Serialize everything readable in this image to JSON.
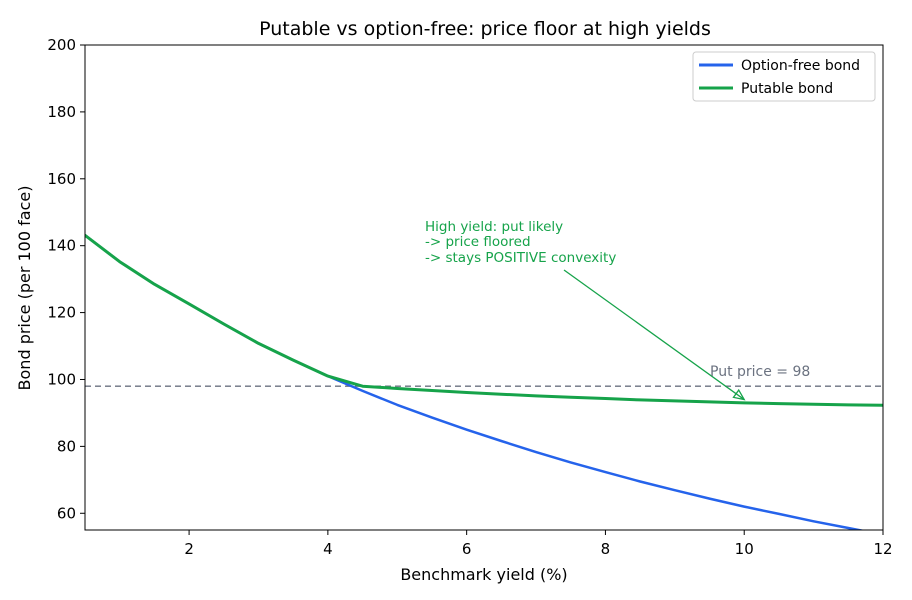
{
  "chart_data": {
    "type": "line",
    "title": "Putable vs option-free: price floor at high yields",
    "xlabel": "Benchmark yield (%)",
    "ylabel": "Bond price (per 100 face)",
    "xlim": [
      0.5,
      12
    ],
    "ylim": [
      55,
      200
    ],
    "xticks": [
      2,
      4,
      6,
      8,
      10,
      12
    ],
    "yticks": [
      60,
      80,
      100,
      120,
      140,
      160,
      180,
      200
    ],
    "grid": false,
    "legend_position": "top-right",
    "series": [
      {
        "name": "Option-free bond",
        "color": "#2563eb",
        "x": [
          0.5,
          1,
          1.5,
          2,
          2.5,
          3,
          3.5,
          4,
          4.5,
          5,
          5.5,
          6,
          6.5,
          7,
          7.5,
          8,
          8.5,
          9,
          9.5,
          10,
          10.5,
          11,
          11.5,
          12
        ],
        "y": [
          143.1,
          135.2,
          128.5,
          122.6,
          116.6,
          110.8,
          105.8,
          101.0,
          96.6,
          92.4,
          88.6,
          85.0,
          81.6,
          78.3,
          75.2,
          72.3,
          69.5,
          66.9,
          64.4,
          62.0,
          59.8,
          57.6,
          55.6,
          53.6
        ]
      },
      {
        "name": "Putable bond",
        "color": "#16a34a",
        "x": [
          0.5,
          1,
          1.5,
          2,
          2.5,
          3,
          3.5,
          4,
          4.5,
          5,
          5.5,
          6,
          6.5,
          7,
          7.5,
          8,
          8.5,
          9,
          9.5,
          10,
          10.5,
          11,
          11.5,
          12
        ],
        "y": [
          143.1,
          135.2,
          128.5,
          122.6,
          116.6,
          110.8,
          105.8,
          101.0,
          98.0,
          97.3,
          96.7,
          96.1,
          95.6,
          95.1,
          94.7,
          94.3,
          93.9,
          93.6,
          93.3,
          93.0,
          92.8,
          92.6,
          92.4,
          92.3
        ]
      }
    ],
    "reference_line": {
      "y": 98,
      "label": "Put price = 98",
      "color": "#6b7280"
    },
    "annotation": {
      "lines": [
        "High yield: put likely",
        "-> price floored",
        "-> stays POSITIVE convexity"
      ],
      "color": "#16a34a",
      "arrow_target": {
        "x": 10,
        "y": 94
      }
    }
  }
}
